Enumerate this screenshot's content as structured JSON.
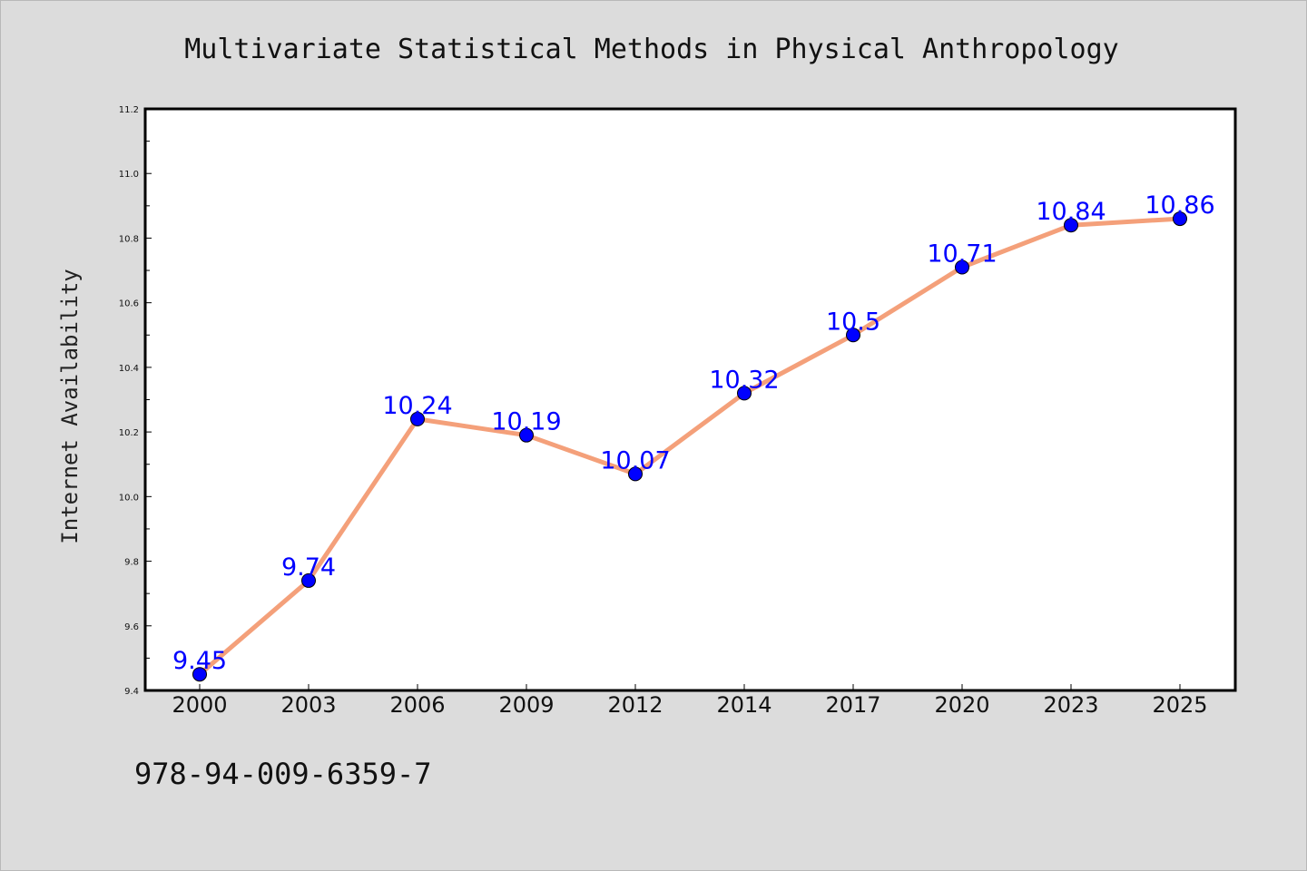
{
  "chart_data": {
    "type": "line",
    "title": "Multivariate Statistical Methods in Physical Anthropology",
    "xlabel": "",
    "ylabel": "Internet Availability",
    "categories": [
      "2000",
      "2003",
      "2006",
      "2009",
      "2012",
      "2014",
      "2017",
      "2020",
      "2023",
      "2025"
    ],
    "series": [
      {
        "values": [
          9.45,
          9.74,
          10.24,
          10.19,
          10.07,
          10.32,
          10.5,
          10.71,
          10.84,
          10.86
        ],
        "data_labels": [
          "9.45",
          "9.74",
          "10.24",
          "10.19",
          "10.07",
          "10.32",
          "10.5",
          "10.71",
          "10.84",
          "10.86"
        ],
        "line_color": "#f4a07a",
        "marker_color": "#0000ff"
      }
    ],
    "ylim": [
      9.4,
      11.2
    ],
    "yticks": [
      "9.4",
      "9.6",
      "9.8",
      "10.0",
      "10.2",
      "10.4",
      "10.6",
      "10.8",
      "11.0",
      "11.2"
    ],
    "grid": false,
    "legend": "none",
    "label_color": "#0000ff"
  },
  "footer": {
    "isbn": "978-94-009-6359-7"
  }
}
